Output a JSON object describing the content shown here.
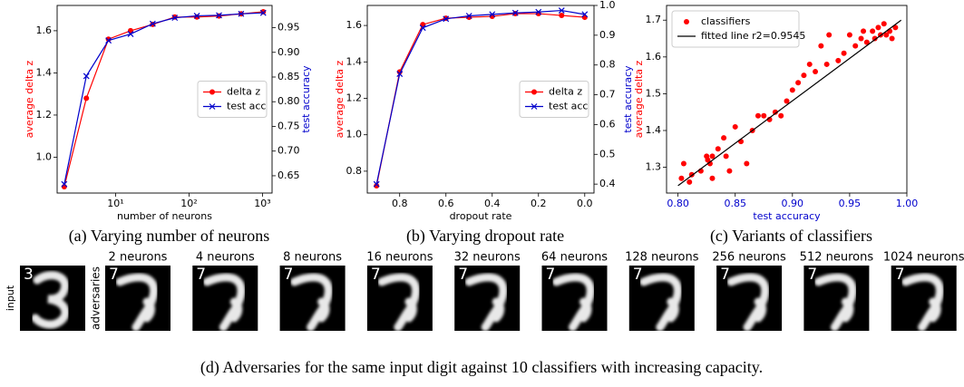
{
  "chart_data": [
    {
      "type": "line",
      "xscale": "log",
      "xlabel": "number of neurons",
      "ylabel": "average delta z",
      "y2label": "test accuracy",
      "ylabel_color": "#ff0000",
      "y2label_color": "#0000cc",
      "xlabel_color": "#000000",
      "xtick_color": "#000000",
      "x": [
        2,
        4,
        8,
        16,
        32,
        64,
        128,
        256,
        512,
        1024
      ],
      "xlim": [
        1.6,
        1350
      ],
      "xticks": [
        {
          "value": 10,
          "label": "10¹"
        },
        {
          "value": 100,
          "label": "10²"
        },
        {
          "value": 1000,
          "label": "10³"
        }
      ],
      "ylim": [
        0.83,
        1.72
      ],
      "yticks": [
        {
          "value": 1.0,
          "label": "1.0"
        },
        1.2,
        1.4,
        1.6
      ],
      "y2lim": [
        0.615,
        0.995
      ],
      "y2ticks": [
        0.65,
        {
          "value": 0.7,
          "label": "0.70"
        },
        0.75,
        {
          "value": 0.8,
          "label": "0.80"
        },
        0.85,
        {
          "value": 0.9,
          "label": "0.90"
        },
        0.95
      ],
      "legend": "center right",
      "series": [
        {
          "name": "delta z",
          "color": "#ff0000",
          "marker": "o",
          "axis": "y",
          "values": [
            0.86,
            1.28,
            1.56,
            1.6,
            1.63,
            1.665,
            1.665,
            1.67,
            1.68,
            1.69
          ]
        },
        {
          "name": "test acc",
          "color": "#0000cc",
          "marker": "x",
          "axis": "y2",
          "values": [
            0.633,
            0.852,
            0.924,
            0.937,
            0.958,
            0.97,
            0.974,
            0.975,
            0.978,
            0.98
          ]
        }
      ]
    },
    {
      "type": "line",
      "xlabel": "dropout rate",
      "ylabel": "average delta z",
      "y2label": "test accuracy",
      "ylabel_color": "#ff0000",
      "y2label_color": "#0000cc",
      "xlabel_color": "#000000",
      "xtick_color": "#000000",
      "x": [
        0.9,
        0.8,
        0.7,
        0.6,
        0.5,
        0.4,
        0.3,
        0.2,
        0.1,
        0.0
      ],
      "xlim": [
        0.94,
        -0.04
      ],
      "xticks": [
        0.8,
        0.6,
        0.4,
        0.2,
        {
          "value": 0,
          "label": "0.0"
        }
      ],
      "ylim": [
        0.68,
        1.71
      ],
      "yticks": [
        0.8,
        {
          "value": 1.0,
          "label": "1.0"
        },
        1.2,
        1.4,
        1.6
      ],
      "y2lim": [
        0.37,
        1.0
      ],
      "y2ticks": [
        0.4,
        0.5,
        0.6,
        0.7,
        0.8,
        0.9,
        {
          "value": 1.0,
          "label": "1.0"
        }
      ],
      "legend": "center right",
      "series": [
        {
          "name": "delta z",
          "color": "#ff0000",
          "marker": "o",
          "axis": "y",
          "values": [
            0.72,
            1.345,
            1.605,
            1.64,
            1.645,
            1.65,
            1.665,
            1.665,
            1.655,
            1.645
          ]
        },
        {
          "name": "test acc",
          "color": "#0000cc",
          "marker": "x",
          "axis": "y2",
          "values": [
            0.4,
            0.77,
            0.925,
            0.955,
            0.965,
            0.97,
            0.975,
            0.978,
            0.983,
            0.97
          ]
        }
      ]
    },
    {
      "type": "scatter",
      "xlabel": "test accuracy",
      "ylabel": "average delta z",
      "ylabel_color": "#ff0000",
      "xlabel_color": "#0000cc",
      "xtick_color": "#0000cc",
      "xlim": [
        0.79,
        1.0
      ],
      "xticks": [
        {
          "value": 0.8,
          "label": "0.80"
        },
        0.85,
        {
          "value": 0.9,
          "label": "0.90"
        },
        0.95,
        {
          "value": 1.0,
          "label": "1.00"
        }
      ],
      "ylim": [
        1.23,
        1.74
      ],
      "yticks": [
        1.3,
        1.4,
        1.5,
        1.6,
        1.7
      ],
      "legend": "upper left",
      "series": [
        {
          "name": "classifiers",
          "color": "#ff0000",
          "marker": "o",
          "x": [
            0.803,
            0.805,
            0.81,
            0.812,
            0.82,
            0.825,
            0.826,
            0.828,
            0.83,
            0.83,
            0.835,
            0.84,
            0.842,
            0.845,
            0.85,
            0.855,
            0.86,
            0.865,
            0.87,
            0.875,
            0.88,
            0.885,
            0.89,
            0.895,
            0.9,
            0.905,
            0.91,
            0.915,
            0.92,
            0.925,
            0.93,
            0.932,
            0.94,
            0.945,
            0.95,
            0.955,
            0.96,
            0.962,
            0.965,
            0.97,
            0.972,
            0.975,
            0.977,
            0.98,
            0.982,
            0.985,
            0.987,
            0.99
          ],
          "values": [
            1.27,
            1.31,
            1.26,
            1.28,
            1.29,
            1.33,
            1.32,
            1.31,
            1.33,
            1.27,
            1.35,
            1.38,
            1.33,
            1.29,
            1.41,
            1.37,
            1.31,
            1.4,
            1.44,
            1.44,
            1.43,
            1.45,
            1.44,
            1.48,
            1.51,
            1.53,
            1.55,
            1.58,
            1.56,
            1.63,
            1.58,
            1.66,
            1.59,
            1.61,
            1.66,
            1.63,
            1.65,
            1.67,
            1.64,
            1.67,
            1.65,
            1.68,
            1.66,
            1.69,
            1.66,
            1.67,
            1.65,
            1.68
          ]
        },
        {
          "name": "fitted line r2=0.9545",
          "color": "#000000",
          "marker": "none",
          "x": [
            0.8,
            0.995
          ],
          "values": [
            1.25,
            1.7
          ]
        }
      ]
    }
  ],
  "captions": [
    "(a) Varying number of neurons",
    "(b) Varying dropout rate",
    "(c) Variants of classifiers"
  ],
  "adversaries": {
    "input_label": "input",
    "adversaries_label": "adversaries",
    "input_digit": "3",
    "columns": [
      {
        "title": "2 neurons",
        "digit": "7"
      },
      {
        "title": "4 neurons",
        "digit": "7"
      },
      {
        "title": "8 neurons",
        "digit": "7"
      },
      {
        "title": "16 neurons",
        "digit": "7"
      },
      {
        "title": "32 neurons",
        "digit": "7"
      },
      {
        "title": "64 neurons",
        "digit": "7"
      },
      {
        "title": "128 neurons",
        "digit": "7"
      },
      {
        "title": "256 neurons",
        "digit": "7"
      },
      {
        "title": "512 neurons",
        "digit": "7"
      },
      {
        "title": "1024 neurons",
        "digit": "7"
      }
    ],
    "caption": "(d) Adversaries for the same input digit against 10 classifiers with increasing capacity."
  }
}
